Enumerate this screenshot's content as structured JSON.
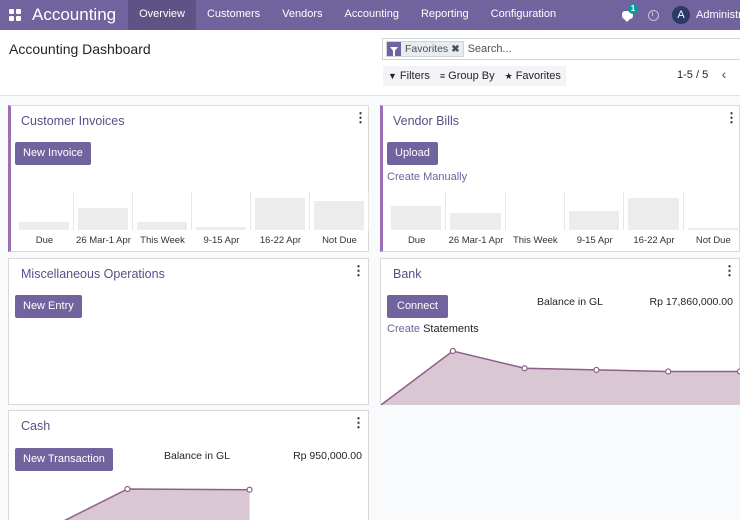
{
  "navbar": {
    "app_name": "Accounting",
    "menu": [
      "Overview",
      "Customers",
      "Vendors",
      "Accounting",
      "Reporting",
      "Configuration"
    ],
    "active_menu": "Overview",
    "messages_count": "1",
    "avatar_letter": "A",
    "user_name": "Administrator"
  },
  "control_panel": {
    "title": "Accounting Dashboard",
    "search": {
      "facet_label": "Favorites",
      "facet_close": "✖",
      "placeholder": "Search..."
    },
    "filters_label": "Filters",
    "group_by_label": "Group By",
    "favorites_label": "Favorites",
    "pager": "1-5 / 5",
    "prev_icon": "‹"
  },
  "cards": {
    "customer_invoices": {
      "title": "Customer Invoices",
      "button": "New Invoice",
      "chart_data": {
        "type": "bar",
        "categories": [
          "Due",
          "26 Mar-1 Apr",
          "This Week",
          "9-15 Apr",
          "16-22 Apr",
          "Not Due"
        ],
        "values": [
          0.25,
          0.65,
          0.25,
          0.1,
          0.95,
          0.85
        ]
      }
    },
    "vendor_bills": {
      "title": "Vendor Bills",
      "button": "Upload",
      "link": "Create Manually",
      "chart_data": {
        "type": "bar",
        "categories": [
          "Due",
          "26 Mar-1 Apr",
          "This Week",
          "9-15 Apr",
          "16-22 Apr",
          "Not Due"
        ],
        "values": [
          0.7,
          0.5,
          0,
          0.55,
          0.95,
          0.05
        ]
      }
    },
    "misc_operations": {
      "title": "Miscellaneous Operations",
      "button": "New Entry"
    },
    "bank": {
      "title": "Bank",
      "button": "Connect",
      "link_prefix": "Create",
      "link_suffix": " Statements",
      "balance_label": "Balance in GL",
      "balance_value": "Rp 17,860,000.00",
      "chart_data": {
        "type": "area",
        "values": [
          0.0,
          1.0,
          0.68,
          0.65,
          0.62,
          0.62
        ],
        "color": "#8e5f87"
      }
    },
    "cash": {
      "title": "Cash",
      "button": "New Transaction",
      "balance_label": "Balance in GL",
      "balance_value": "Rp 950,000.00",
      "chart_data": {
        "type": "area",
        "values": [
          0.0,
          1.0,
          0.98
        ],
        "color": "#8e5f87"
      }
    }
  },
  "icons": {
    "apps": "apps-grid-icon",
    "messages": "chat-icon",
    "activities": "clock-icon",
    "filter": "funnel-icon",
    "group_by": "list-icon",
    "favorites": "star-icon",
    "card_menu": "kebab-icon"
  },
  "colors": {
    "brand": "#71639e",
    "accent_border": "#9b6eb5",
    "area_fill": "#d9c8d4",
    "area_stroke": "#8e5f87"
  }
}
